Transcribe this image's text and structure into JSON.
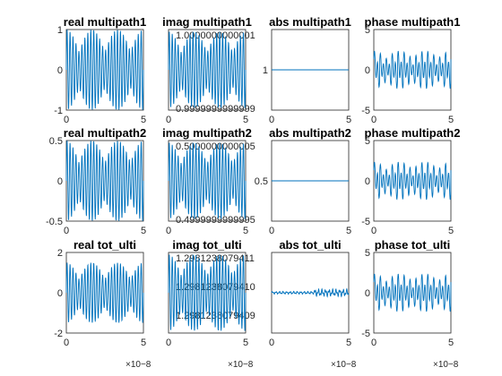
{
  "colors": {
    "line": "#0072BD",
    "axis": "#262626",
    "background": "#FFFFFF"
  },
  "chart_data": [
    {
      "type": "line",
      "title": "real multipath1",
      "x_range": [
        0,
        5e-08
      ],
      "xlim": [
        0,
        5e-08
      ],
      "ylim": [
        -1,
        1
      ],
      "xticks": [
        "0",
        "5"
      ],
      "yticks": [
        "-1",
        "0",
        "1"
      ],
      "x_exponent": "×10−8",
      "signal": {
        "shape": "beat-oscillation",
        "amplitude": 1,
        "offset": 0,
        "cycles": 26,
        "envelope_cycles": 3
      },
      "x_exponent_hidden": true
    },
    {
      "type": "line",
      "title": "imag multipath1",
      "xlim": [
        0,
        5e-08
      ],
      "ylim": [
        0.9999999999999,
        1.0000000000001
      ],
      "yticks": [
        "0.9999999999999",
        "1.0000000000001"
      ],
      "xticks": [
        "0",
        "5"
      ],
      "x_exponent": "×10−8",
      "signal": {
        "shape": "beat-oscillation",
        "amplitude": 0.95,
        "offset": 0,
        "cycles": 26,
        "envelope_cycles": 3
      },
      "x_exponent_hidden": true
    },
    {
      "type": "line",
      "title": "abs multipath1",
      "xlim": [
        0,
        5e-08
      ],
      "ylim": [
        0.9999999999999,
        1.0000000000001
      ],
      "yticks": [
        "1"
      ],
      "xticks": [
        "0",
        "5"
      ],
      "signal": {
        "shape": "constant",
        "value": 1
      },
      "x_exponent_hidden": true
    },
    {
      "type": "line",
      "title": "phase multipath1",
      "xlim": [
        0,
        5e-08
      ],
      "ylim": [
        -5,
        5
      ],
      "yticks": [
        "-5",
        "0",
        "5"
      ],
      "xticks": [
        "0",
        "5"
      ],
      "signal": {
        "shape": "sawtooth-oscillation",
        "amplitude": 2.2,
        "offset": 0,
        "cycles": 26,
        "envelope_cycles": 3
      },
      "x_exponent_hidden": true
    },
    {
      "type": "line",
      "title": "real multipath2",
      "xlim": [
        0,
        5e-08
      ],
      "ylim": [
        -0.5,
        0.5
      ],
      "yticks": [
        "-0.5",
        "0",
        "0.5"
      ],
      "xticks": [
        "0",
        "5"
      ],
      "x_exponent": "×10−8",
      "signal": {
        "shape": "beat-oscillation",
        "amplitude": 0.5,
        "offset": 0,
        "cycles": 26,
        "envelope_cycles": 3
      },
      "x_exponent_hidden": true
    },
    {
      "type": "line",
      "title": "imag multipath2",
      "xlim": [
        0,
        5e-08
      ],
      "ylim": [
        0.4999999999995,
        0.5000000000005
      ],
      "yticks": [
        "0.4999999999995",
        "0.5000000000005"
      ],
      "xticks": [
        "0",
        "5"
      ],
      "x_exponent": "×10−8",
      "signal": {
        "shape": "beat-oscillation",
        "amplitude": 0.95,
        "offset": 0,
        "cycles": 26,
        "envelope_cycles": 3
      },
      "x_exponent_hidden": true
    },
    {
      "type": "line",
      "title": "abs multipath2",
      "xlim": [
        0,
        5e-08
      ],
      "ylim": [
        0.4999999999995,
        0.5000000000005
      ],
      "yticks": [
        "0.5"
      ],
      "xticks": [
        "0",
        "5"
      ],
      "x_exponent": "×10−8",
      "signal": {
        "shape": "constant",
        "value": 0.5
      },
      "x_exponent_hidden": true
    },
    {
      "type": "line",
      "title": "phase multipath2",
      "xlim": [
        0,
        5e-08
      ],
      "ylim": [
        -5,
        5
      ],
      "yticks": [
        "-5",
        "0",
        "5"
      ],
      "xticks": [
        "0",
        "5"
      ],
      "signal": {
        "shape": "sawtooth-oscillation",
        "amplitude": 2.2,
        "offset": 0,
        "cycles": 26,
        "envelope_cycles": 3
      },
      "x_exponent_hidden": true
    },
    {
      "type": "line",
      "title": "real tot_ulti",
      "xlim": [
        0,
        5e-08
      ],
      "ylim": [
        -2,
        2
      ],
      "yticks": [
        "-2",
        "0",
        "2"
      ],
      "xticks": [
        "0",
        "5"
      ],
      "x_exponent": "×10−8",
      "signal": {
        "shape": "beat-oscillation",
        "amplitude": 1.5,
        "offset": 0,
        "cycles": 26,
        "envelope_cycles": 3
      }
    },
    {
      "type": "line",
      "title": "imag tot_ulti",
      "xlim": [
        0,
        5e-08
      ],
      "ylim": [
        1.2981238079409,
        1.2981238079411
      ],
      "yticks": [
        "1.2981238079411",
        "1.2981238079410",
        "1.2981238079409"
      ],
      "xticks": [
        "0",
        "5"
      ],
      "x_exponent": "×10−8",
      "signal": {
        "shape": "beat-oscillation",
        "amplitude": 0.95,
        "offset": 0,
        "cycles": 26,
        "envelope_cycles": 3
      }
    },
    {
      "type": "line",
      "title": "abs tot_ulti",
      "xlim": [
        0,
        5e-08
      ],
      "ylim": [
        1.2981238079409,
        1.2981238079411
      ],
      "yticks": [],
      "xticks": [
        "0",
        "5"
      ],
      "x_exponent": "×10−8",
      "signal": {
        "shape": "noisy-constant",
        "value": 0.0,
        "amplitude": 0.06
      }
    },
    {
      "type": "line",
      "title": "phase tot_ulti",
      "xlim": [
        0,
        5e-08
      ],
      "ylim": [
        -5,
        5
      ],
      "yticks": [
        "-5",
        "0",
        "5"
      ],
      "xticks": [
        "0",
        "5"
      ],
      "x_exponent": "×10−8",
      "signal": {
        "shape": "sawtooth-oscillation",
        "amplitude": 2.2,
        "offset": 0,
        "cycles": 26,
        "envelope_cycles": 3
      }
    }
  ]
}
